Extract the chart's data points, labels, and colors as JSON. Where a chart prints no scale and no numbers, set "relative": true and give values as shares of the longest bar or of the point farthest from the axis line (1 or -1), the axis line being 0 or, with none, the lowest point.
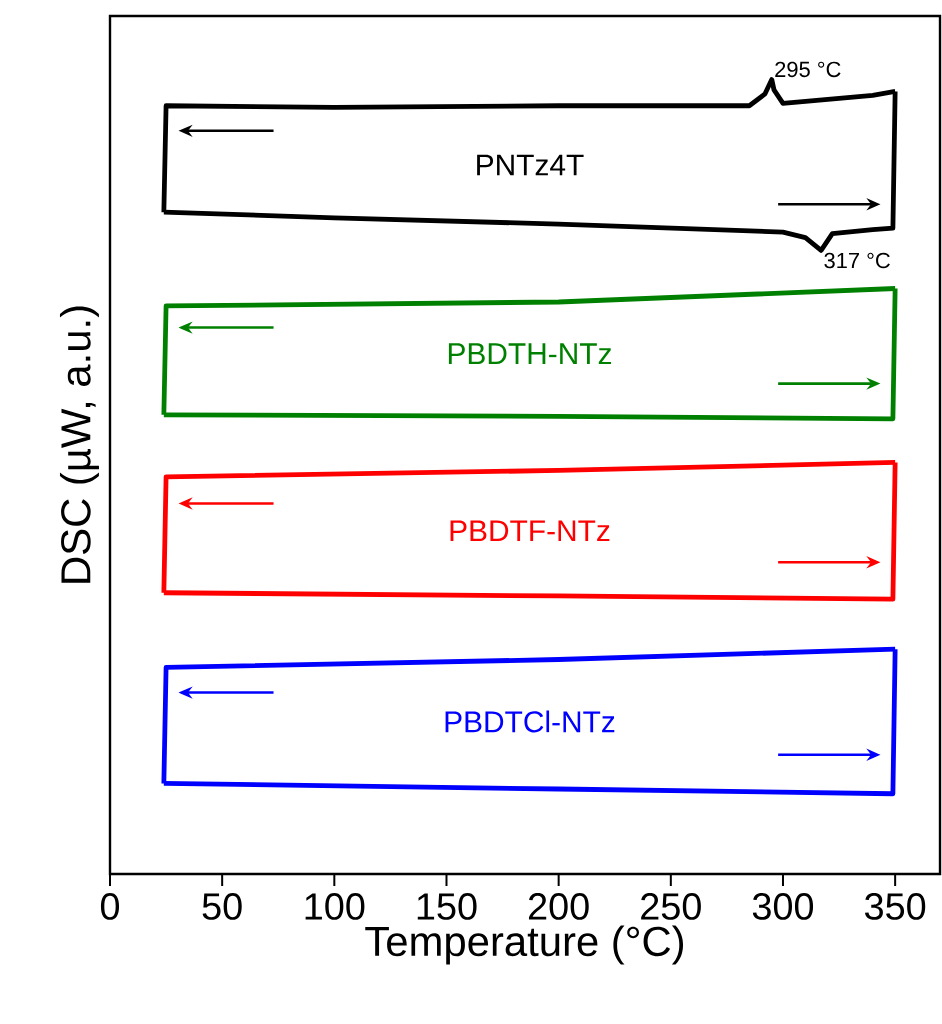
{
  "chart_data": {
    "type": "line",
    "relative": true,
    "xlabel": "Temperature (°C)",
    "ylabel": "DSC (µW, a.u.)",
    "xlim": [
      0,
      370
    ],
    "xticks": [
      0,
      50,
      100,
      150,
      200,
      250,
      300,
      350
    ],
    "legend": false,
    "grid": false,
    "marker": "none",
    "line_style": "solid",
    "series": [
      {
        "name": "PNTz4T",
        "color": "#000000",
        "x": [
          24,
          100,
          200,
          300,
          310,
          317,
          322,
          340,
          349,
          350
        ],
        "values": [
          0.833,
          0.826,
          0.818,
          0.808,
          0.801,
          0.785,
          0.806,
          0.811,
          0.813,
          0.985
        ]
      },
      {
        "color": "#000000",
        "x": [
          24,
          25,
          100,
          200,
          285,
          292,
          295,
          296,
          300,
          340,
          350
        ],
        "values": [
          0.833,
          0.967,
          0.965,
          0.967,
          0.967,
          0.982,
          1.0,
          0.987,
          0.97,
          0.98,
          0.985
        ]
      },
      {
        "name": "PBDTH-NTz",
        "color": "#008000",
        "x": [
          24,
          200,
          349,
          350
        ],
        "values": [
          0.578,
          0.576,
          0.573,
          0.737
        ]
      },
      {
        "color": "#008000",
        "x": [
          24,
          25,
          200,
          350
        ],
        "values": [
          0.578,
          0.715,
          0.72,
          0.737
        ]
      },
      {
        "name": "PBDTF-NTz",
        "color": "#ff0000",
        "x": [
          24,
          200,
          349,
          350
        ],
        "values": [
          0.354,
          0.35,
          0.346,
          0.518
        ]
      },
      {
        "color": "#ff0000",
        "x": [
          24,
          25,
          200,
          350
        ],
        "values": [
          0.354,
          0.5,
          0.508,
          0.518
        ]
      },
      {
        "name": "PBDTCl-NTz",
        "color": "#0000ff",
        "x": [
          24,
          200,
          349,
          350
        ],
        "values": [
          0.114,
          0.107,
          0.101,
          0.283
        ]
      },
      {
        "color": "#0000ff",
        "x": [
          24,
          25,
          200,
          350
        ],
        "values": [
          0.114,
          0.26,
          0.27,
          0.283
        ]
      }
    ],
    "annotations": [
      {
        "text": "295 °C",
        "x": 295,
        "y": 1.0
      },
      {
        "text": "317 °C",
        "x": 317,
        "y": 0.785
      }
    ]
  }
}
